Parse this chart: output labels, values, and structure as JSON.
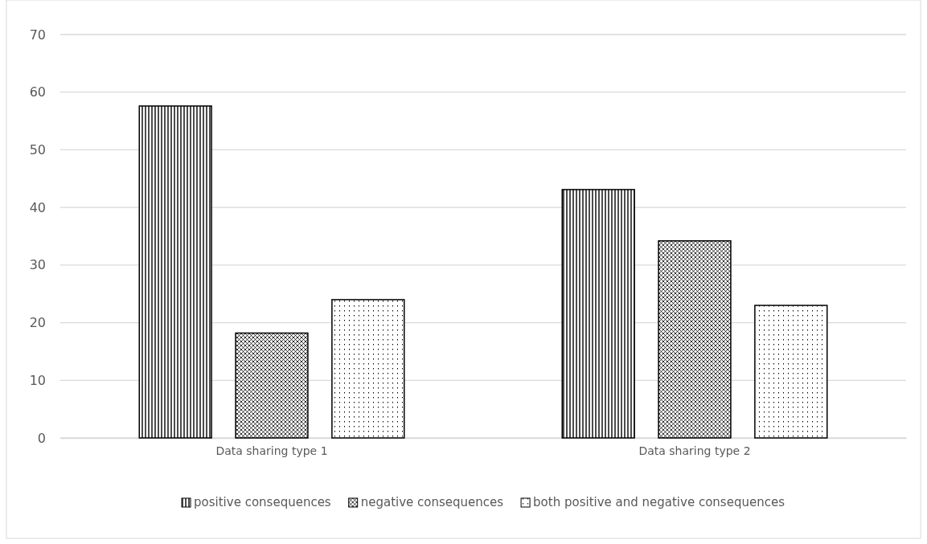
{
  "chart_data": {
    "type": "bar",
    "categories": [
      "Data sharing type 1",
      "Data sharing type 2"
    ],
    "series": [
      {
        "name": "positive consequences",
        "color": "#000000",
        "values": [
          57.6,
          43.1
        ]
      },
      {
        "name": "negative consequences",
        "color": "#000000",
        "values": [
          18.2,
          34.2
        ]
      },
      {
        "name": "both positive and negative consequences",
        "color": "#000000",
        "values": [
          24.0,
          23.0
        ]
      }
    ],
    "ylim": [
      0,
      70
    ],
    "yticks": [
      0,
      10,
      20,
      30,
      40,
      50,
      60,
      70
    ],
    "grid": "y",
    "legend": "bottom"
  }
}
